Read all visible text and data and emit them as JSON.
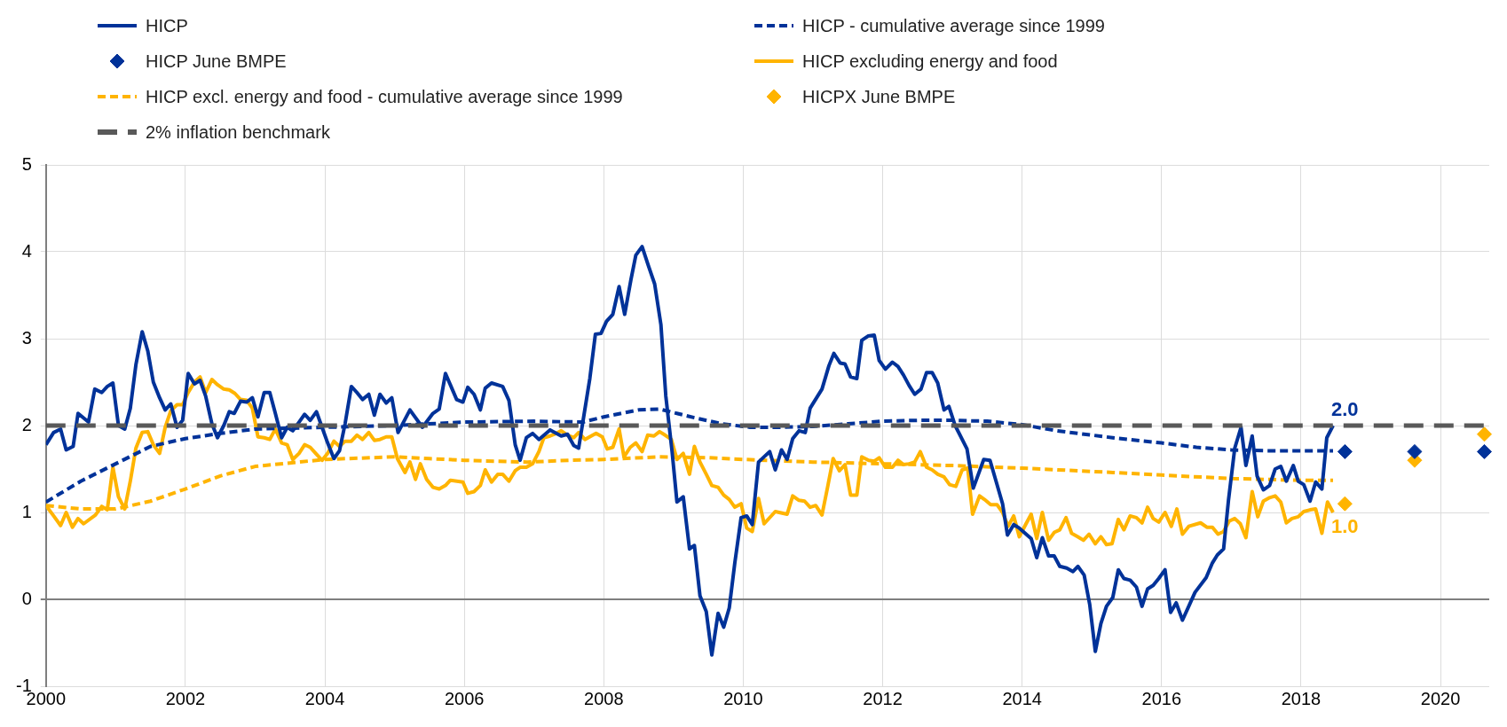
{
  "chart_data": {
    "type": "line",
    "xlim": [
      2000,
      2020.7
    ],
    "xticks": [
      2000,
      2002,
      2004,
      2006,
      2008,
      2010,
      2012,
      2014,
      2016,
      2018,
      2020
    ],
    "ylim": [
      -1,
      5
    ],
    "yticks": [
      -1,
      0,
      1,
      2,
      3,
      4,
      5
    ],
    "grid": true,
    "legend": "top",
    "series": [
      {
        "name": "HICP",
        "color": "#003299",
        "line_style": "solid",
        "x": [
          2000.0,
          2000.11,
          2000.21,
          2000.29,
          2000.39,
          2000.46,
          2000.61,
          2000.7,
          2000.8,
          2000.88,
          2000.96,
          2001.04,
          2001.13,
          2001.21,
          2001.29,
          2001.38,
          2001.46,
          2001.54,
          2001.63,
          2001.71,
          2001.79,
          2001.88,
          2001.96,
          2002.04,
          2002.13,
          2002.21,
          2002.29,
          2002.38,
          2002.46,
          2002.55,
          2002.63,
          2002.7,
          2002.79,
          2002.88,
          2002.96,
          2003.04,
          2003.13,
          2003.21,
          2003.29,
          2003.38,
          2003.46,
          2003.54,
          2003.63,
          2003.71,
          2003.79,
          2003.88,
          2003.96,
          2004.04,
          2004.13,
          2004.21,
          2004.29,
          2004.38,
          2004.46,
          2004.54,
          2004.63,
          2004.71,
          2004.79,
          2004.88,
          2004.96,
          2005.05,
          2005.22,
          2005.4,
          2005.55,
          2005.64,
          2005.73,
          2005.89,
          2005.98,
          2006.05,
          2006.14,
          2006.23,
          2006.3,
          2006.39,
          2006.55,
          2006.64,
          2006.73,
          2006.8,
          2006.89,
          2006.98,
          2007.07,
          2007.23,
          2007.39,
          2007.48,
          2007.57,
          2007.64,
          2007.7,
          2007.8,
          2007.88,
          2007.96,
          2008.04,
          2008.13,
          2008.22,
          2008.3,
          2008.39,
          2008.46,
          2008.55,
          2008.64,
          2008.73,
          2008.82,
          2008.89,
          2008.98,
          2009.05,
          2009.14,
          2009.23,
          2009.3,
          2009.38,
          2009.47,
          2009.55,
          2009.64,
          2009.72,
          2009.8,
          2009.88,
          2009.97,
          2010.05,
          2010.13,
          2010.22,
          2010.38,
          2010.46,
          2010.55,
          2010.63,
          2010.71,
          2010.8,
          2010.89,
          2010.96,
          2011.13,
          2011.23,
          2011.3,
          2011.39,
          2011.46,
          2011.54,
          2011.63,
          2011.7,
          2011.79,
          2011.88,
          2011.95,
          2012.04,
          2012.14,
          2012.22,
          2012.3,
          2012.38,
          2012.46,
          2012.55,
          2012.63,
          2012.71,
          2012.79,
          2012.88,
          2012.95,
          2013.04,
          2013.21,
          2013.3,
          2013.45,
          2013.54,
          2013.72,
          2013.79,
          2013.88,
          2013.96,
          2014.13,
          2014.21,
          2014.29,
          2014.38,
          2014.46,
          2014.54,
          2014.64,
          2014.73,
          2014.8,
          2014.89,
          2014.97,
          2015.05,
          2015.13,
          2015.21,
          2015.3,
          2015.38,
          2015.46,
          2015.55,
          2015.64,
          2015.72,
          2015.8,
          2015.88,
          2015.96,
          2016.05,
          2016.13,
          2016.21,
          2016.3,
          2016.39,
          2016.48,
          2016.64,
          2016.73,
          2016.8,
          2016.89,
          2016.96,
          2017.05,
          2017.14,
          2017.21,
          2017.3,
          2017.37,
          2017.46,
          2017.55,
          2017.63,
          2017.71,
          2017.79,
          2017.89,
          2017.96,
          2018.04,
          2018.13,
          2018.21,
          2018.3,
          2018.37,
          2018.46
        ],
        "values": [
          1.78,
          1.92,
          1.96,
          1.72,
          1.76,
          2.14,
          2.04,
          2.42,
          2.38,
          2.45,
          2.49,
          2.0,
          1.96,
          2.2,
          2.7,
          3.08,
          2.86,
          2.5,
          2.32,
          2.18,
          2.25,
          1.98,
          2.06,
          2.6,
          2.48,
          2.52,
          2.34,
          2.02,
          1.86,
          2.0,
          2.16,
          2.14,
          2.28,
          2.27,
          2.32,
          2.1,
          2.38,
          2.38,
          2.14,
          1.86,
          1.98,
          1.94,
          2.04,
          2.13,
          2.06,
          2.16,
          1.98,
          1.8,
          1.62,
          1.71,
          2.02,
          2.45,
          2.38,
          2.3,
          2.36,
          2.12,
          2.36,
          2.26,
          2.32,
          1.92,
          2.18,
          1.98,
          2.14,
          2.19,
          2.6,
          2.3,
          2.27,
          2.44,
          2.36,
          2.18,
          2.43,
          2.49,
          2.45,
          2.29,
          1.78,
          1.6,
          1.86,
          1.91,
          1.84,
          1.95,
          1.88,
          1.9,
          1.77,
          1.74,
          2.04,
          2.54,
          3.05,
          3.06,
          3.2,
          3.28,
          3.6,
          3.28,
          3.68,
          3.96,
          4.06,
          3.84,
          3.63,
          3.16,
          2.34,
          1.7,
          1.12,
          1.18,
          0.58,
          0.62,
          0.04,
          -0.14,
          -0.64,
          -0.16,
          -0.32,
          -0.1,
          0.42,
          0.94,
          0.96,
          0.86,
          1.58,
          1.7,
          1.49,
          1.72,
          1.61,
          1.85,
          1.94,
          1.92,
          2.2,
          2.42,
          2.69,
          2.83,
          2.72,
          2.71,
          2.56,
          2.54,
          2.98,
          3.03,
          3.04,
          2.75,
          2.65,
          2.73,
          2.68,
          2.58,
          2.46,
          2.36,
          2.42,
          2.61,
          2.61,
          2.49,
          2.18,
          2.22,
          2.0,
          1.73,
          1.28,
          1.61,
          1.6,
          1.1,
          0.74,
          0.86,
          0.82,
          0.7,
          0.48,
          0.71,
          0.5,
          0.5,
          0.38,
          0.36,
          0.32,
          0.38,
          0.28,
          -0.06,
          -0.6,
          -0.28,
          -0.08,
          0.02,
          0.34,
          0.24,
          0.22,
          0.14,
          -0.08,
          0.12,
          0.16,
          0.24,
          0.34,
          -0.15,
          -0.04,
          -0.24,
          -0.08,
          0.08,
          0.25,
          0.42,
          0.51,
          0.58,
          1.14,
          1.74,
          1.98,
          1.54,
          1.88,
          1.42,
          1.26,
          1.31,
          1.5,
          1.53,
          1.36,
          1.54,
          1.36,
          1.32,
          1.13,
          1.35,
          1.27,
          1.86,
          2.0
        ]
      },
      {
        "name": "HICP - cumulative average since 1999",
        "color": "#003299",
        "line_style": "dashed",
        "x": [
          2000.0,
          2000.5,
          2001.0,
          2001.5,
          2002.0,
          2002.5,
          2003.0,
          2004.0,
          2005.0,
          2006.0,
          2007.0,
          2007.7,
          2008.0,
          2008.5,
          2008.8,
          2009.3,
          2009.7,
          2010.1,
          2010.5,
          2011.0,
          2011.5,
          2012.0,
          2012.5,
          2013.0,
          2013.5,
          2014.0,
          2014.5,
          2015.3,
          2016.0,
          2016.5,
          2017.0,
          2017.5,
          2018.0,
          2018.46
        ],
        "values": [
          1.12,
          1.36,
          1.56,
          1.76,
          1.85,
          1.91,
          1.96,
          1.98,
          2.0,
          2.04,
          2.05,
          2.04,
          2.1,
          2.18,
          2.19,
          2.09,
          2.02,
          1.98,
          1.98,
          1.99,
          2.02,
          2.05,
          2.06,
          2.06,
          2.05,
          2.01,
          1.94,
          1.86,
          1.8,
          1.75,
          1.72,
          1.71,
          1.71,
          1.71
        ]
      },
      {
        "name": "HICP June BMPE",
        "color": "#003299",
        "type": "scatter",
        "marker": "diamond",
        "x": [
          2018.63,
          2019.63,
          2020.63
        ],
        "values": [
          1.7,
          1.7,
          1.7
        ]
      },
      {
        "name": "HICP excluding energy and food",
        "color": "#ffb400",
        "line_style": "solid",
        "x": [
          2000.0,
          2000.11,
          2000.21,
          2000.29,
          2000.38,
          2000.46,
          2000.54,
          2000.71,
          2000.8,
          2000.88,
          2000.96,
          2001.04,
          2001.13,
          2001.21,
          2001.29,
          2001.38,
          2001.46,
          2001.54,
          2001.63,
          2001.71,
          2001.79,
          2001.88,
          2001.96,
          2002.04,
          2002.13,
          2002.21,
          2002.29,
          2002.38,
          2002.46,
          2002.55,
          2002.63,
          2002.71,
          2002.79,
          2002.88,
          2002.96,
          2003.04,
          2003.13,
          2003.21,
          2003.29,
          2003.38,
          2003.46,
          2003.54,
          2003.63,
          2003.71,
          2003.79,
          2003.88,
          2003.96,
          2004.04,
          2004.13,
          2004.21,
          2004.29,
          2004.38,
          2004.46,
          2004.54,
          2004.63,
          2004.71,
          2004.79,
          2004.88,
          2004.96,
          2005.04,
          2005.15,
          2005.22,
          2005.3,
          2005.37,
          2005.46,
          2005.55,
          2005.64,
          2005.73,
          2005.8,
          2005.98,
          2006.05,
          2006.14,
          2006.23,
          2006.3,
          2006.39,
          2006.48,
          2006.55,
          2006.64,
          2006.73,
          2006.8,
          2006.89,
          2006.98,
          2007.07,
          2007.14,
          2007.23,
          2007.32,
          2007.39,
          2007.48,
          2007.57,
          2007.64,
          2007.73,
          2007.82,
          2007.89,
          2007.98,
          2008.05,
          2008.13,
          2008.22,
          2008.29,
          2008.38,
          2008.46,
          2008.55,
          2008.63,
          2008.72,
          2008.8,
          2008.88,
          2008.97,
          2009.05,
          2009.14,
          2009.23,
          2009.3,
          2009.38,
          2009.47,
          2009.55,
          2009.64,
          2009.72,
          2009.8,
          2009.88,
          2009.97,
          2010.05,
          2010.13,
          2010.22,
          2010.3,
          2010.46,
          2010.63,
          2010.71,
          2010.8,
          2010.88,
          2010.96,
          2011.04,
          2011.13,
          2011.21,
          2011.29,
          2011.38,
          2011.46,
          2011.54,
          2011.63,
          2011.7,
          2011.8,
          2011.88,
          2011.95,
          2012.04,
          2012.14,
          2012.22,
          2012.3,
          2012.38,
          2012.46,
          2012.54,
          2012.63,
          2012.71,
          2012.79,
          2012.88,
          2012.96,
          2013.05,
          2013.14,
          2013.22,
          2013.29,
          2013.39,
          2013.46,
          2013.55,
          2013.64,
          2013.72,
          2013.8,
          2013.88,
          2013.96,
          2014.05,
          2014.13,
          2014.21,
          2014.29,
          2014.38,
          2014.46,
          2014.54,
          2014.63,
          2014.71,
          2014.8,
          2014.88,
          2014.96,
          2015.05,
          2015.13,
          2015.21,
          2015.29,
          2015.38,
          2015.46,
          2015.55,
          2015.64,
          2015.72,
          2015.8,
          2015.88,
          2015.96,
          2016.05,
          2016.14,
          2016.22,
          2016.3,
          2016.39,
          2016.56,
          2016.65,
          2016.73,
          2016.81,
          2016.89,
          2016.97,
          2017.05,
          2017.13,
          2017.21,
          2017.3,
          2017.38,
          2017.46,
          2017.55,
          2017.63,
          2017.71,
          2017.79,
          2017.87,
          2017.96,
          2018.04,
          2018.13,
          2018.21,
          2018.3,
          2018.38,
          2018.46
        ],
        "values": [
          1.08,
          0.96,
          0.85,
          1.0,
          0.83,
          0.93,
          0.87,
          0.97,
          1.07,
          1.03,
          1.52,
          1.18,
          1.04,
          1.36,
          1.74,
          1.92,
          1.93,
          1.78,
          1.68,
          1.98,
          2.17,
          2.24,
          2.24,
          2.38,
          2.5,
          2.56,
          2.38,
          2.53,
          2.47,
          2.42,
          2.41,
          2.37,
          2.3,
          2.29,
          2.2,
          1.87,
          1.86,
          1.84,
          1.96,
          1.8,
          1.78,
          1.61,
          1.68,
          1.78,
          1.75,
          1.67,
          1.6,
          1.68,
          1.82,
          1.76,
          1.82,
          1.82,
          1.89,
          1.84,
          1.92,
          1.83,
          1.84,
          1.87,
          1.87,
          1.62,
          1.46,
          1.58,
          1.38,
          1.56,
          1.38,
          1.29,
          1.27,
          1.31,
          1.37,
          1.35,
          1.22,
          1.24,
          1.31,
          1.49,
          1.35,
          1.44,
          1.44,
          1.36,
          1.48,
          1.52,
          1.52,
          1.56,
          1.7,
          1.86,
          1.88,
          1.91,
          1.94,
          1.89,
          1.86,
          1.92,
          1.84,
          1.88,
          1.91,
          1.87,
          1.73,
          1.75,
          1.96,
          1.64,
          1.75,
          1.8,
          1.7,
          1.89,
          1.88,
          1.93,
          1.89,
          1.84,
          1.61,
          1.68,
          1.44,
          1.76,
          1.58,
          1.44,
          1.31,
          1.29,
          1.2,
          1.15,
          1.06,
          1.1,
          0.82,
          0.78,
          1.16,
          0.87,
          1.01,
          0.98,
          1.19,
          1.14,
          1.13,
          1.06,
          1.08,
          0.97,
          1.29,
          1.62,
          1.48,
          1.55,
          1.2,
          1.2,
          1.64,
          1.6,
          1.59,
          1.63,
          1.52,
          1.52,
          1.6,
          1.55,
          1.56,
          1.58,
          1.7,
          1.52,
          1.49,
          1.44,
          1.41,
          1.32,
          1.3,
          1.49,
          1.51,
          0.98,
          1.19,
          1.15,
          1.09,
          1.09,
          1.0,
          0.84,
          0.96,
          0.72,
          0.86,
          0.98,
          0.7,
          1.0,
          0.68,
          0.77,
          0.8,
          0.94,
          0.76,
          0.72,
          0.68,
          0.75,
          0.64,
          0.72,
          0.63,
          0.64,
          0.92,
          0.8,
          0.96,
          0.94,
          0.88,
          1.06,
          0.93,
          0.89,
          1.0,
          0.84,
          1.04,
          0.75,
          0.84,
          0.88,
          0.83,
          0.83,
          0.75,
          0.78,
          0.9,
          0.93,
          0.87,
          0.71,
          1.24,
          0.95,
          1.13,
          1.17,
          1.19,
          1.12,
          0.88,
          0.93,
          0.95,
          1.01,
          1.03,
          1.04,
          0.76,
          1.12,
          1.0
        ]
      },
      {
        "name": "HICP excl. energy and food - cumulative average since 1999",
        "color": "#ffb400",
        "line_style": "dashed",
        "x": [
          2000.0,
          2000.5,
          2001.0,
          2001.5,
          2002.0,
          2002.5,
          2003.0,
          2003.5,
          2004.0,
          2005.0,
          2005.5,
          2006.0,
          2006.9,
          2007.5,
          2008.0,
          2008.8,
          2009.5,
          2010.0,
          2011.0,
          2012.0,
          2013.0,
          2014.0,
          2015.3,
          2016.0,
          2017.0,
          2018.0,
          2018.46
        ],
        "values": [
          1.08,
          1.04,
          1.04,
          1.13,
          1.27,
          1.42,
          1.53,
          1.57,
          1.61,
          1.64,
          1.62,
          1.6,
          1.58,
          1.6,
          1.61,
          1.64,
          1.63,
          1.61,
          1.58,
          1.56,
          1.54,
          1.51,
          1.46,
          1.43,
          1.39,
          1.37,
          1.37
        ]
      },
      {
        "name": "HICPX June BMPE",
        "color": "#ffb400",
        "type": "scatter",
        "marker": "diamond",
        "x": [
          2018.63,
          2019.63,
          2020.63
        ],
        "values": [
          1.1,
          1.6,
          1.9
        ]
      }
    ],
    "ref_lines": [
      {
        "axis": "y",
        "value": 2,
        "label": "2% inflation benchmark",
        "color": "#595959",
        "line_style": "dashed"
      }
    ],
    "annotations": [
      {
        "text": "2.0",
        "x": 2018.46,
        "y": 2.0
      },
      {
        "text": "1.0",
        "x": 2018.46,
        "y": 1.0
      }
    ]
  }
}
